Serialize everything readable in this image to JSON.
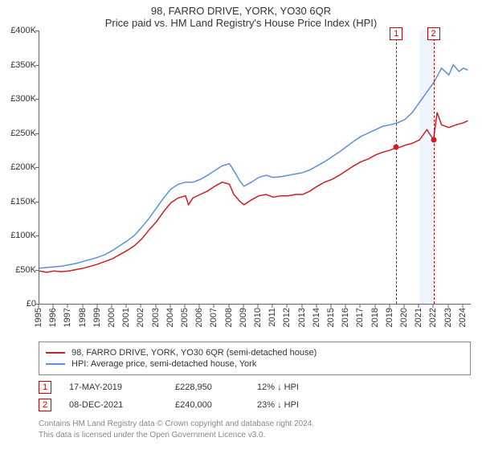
{
  "title": "98, FARRO DRIVE, YORK, YO30 6QR",
  "subtitle": "Price paid vs. HM Land Registry's House Price Index (HPI)",
  "chart": {
    "type": "line",
    "background_color": "#ffffff",
    "axis_color": "#666666",
    "label_color": "#333333",
    "label_fontsize": 11,
    "title_fontsize": 13,
    "x": {
      "min": 1995,
      "max": 2024.5,
      "ticks": [
        1995,
        1996,
        1997,
        1998,
        1999,
        2000,
        2001,
        2002,
        2003,
        2004,
        2005,
        2006,
        2007,
        2008,
        2009,
        2010,
        2011,
        2012,
        2013,
        2014,
        2015,
        2016,
        2017,
        2018,
        2019,
        2020,
        2021,
        2022,
        2023,
        2024
      ],
      "tick_rotation_deg": -90
    },
    "y": {
      "min": 0,
      "max": 400000,
      "ticks": [
        0,
        50000,
        100000,
        150000,
        200000,
        250000,
        300000,
        350000,
        400000
      ],
      "tick_labels": [
        "£0",
        "£50K",
        "£100K",
        "£150K",
        "£200K",
        "£250K",
        "£300K",
        "£350K",
        "£400K"
      ]
    },
    "markers": [
      {
        "tag": "1",
        "x": 2019.4,
        "shade_to": null
      },
      {
        "tag": "2",
        "x": 2021.95,
        "shade_to": 2021.0
      }
    ],
    "series": [
      {
        "key": "price_paid",
        "label": "98, FARRO DRIVE, YORK, YO30 6QR (semi-detached house)",
        "color": "#cc1f1f",
        "line_width": 1.5,
        "values": [
          [
            1995.0,
            48000
          ],
          [
            1995.5,
            46000
          ],
          [
            1996.0,
            48000
          ],
          [
            1996.5,
            47000
          ],
          [
            1997.0,
            48000
          ],
          [
            1997.5,
            50000
          ],
          [
            1998.0,
            52000
          ],
          [
            1998.5,
            55000
          ],
          [
            1999.0,
            58000
          ],
          [
            1999.5,
            62000
          ],
          [
            2000.0,
            66000
          ],
          [
            2000.5,
            72000
          ],
          [
            2001.0,
            78000
          ],
          [
            2001.5,
            85000
          ],
          [
            2002.0,
            95000
          ],
          [
            2002.5,
            108000
          ],
          [
            2003.0,
            120000
          ],
          [
            2003.5,
            135000
          ],
          [
            2004.0,
            148000
          ],
          [
            2004.5,
            155000
          ],
          [
            2005.0,
            158000
          ],
          [
            2005.2,
            145000
          ],
          [
            2005.5,
            155000
          ],
          [
            2006.0,
            160000
          ],
          [
            2006.5,
            165000
          ],
          [
            2007.0,
            172000
          ],
          [
            2007.5,
            178000
          ],
          [
            2008.0,
            175000
          ],
          [
            2008.3,
            160000
          ],
          [
            2008.7,
            150000
          ],
          [
            2009.0,
            145000
          ],
          [
            2009.5,
            152000
          ],
          [
            2010.0,
            158000
          ],
          [
            2010.5,
            160000
          ],
          [
            2011.0,
            156000
          ],
          [
            2011.5,
            158000
          ],
          [
            2012.0,
            158000
          ],
          [
            2012.5,
            160000
          ],
          [
            2013.0,
            160000
          ],
          [
            2013.5,
            165000
          ],
          [
            2014.0,
            172000
          ],
          [
            2014.5,
            178000
          ],
          [
            2015.0,
            182000
          ],
          [
            2015.5,
            188000
          ],
          [
            2016.0,
            195000
          ],
          [
            2016.5,
            202000
          ],
          [
            2017.0,
            208000
          ],
          [
            2017.5,
            212000
          ],
          [
            2018.0,
            218000
          ],
          [
            2018.5,
            222000
          ],
          [
            2019.0,
            225000
          ],
          [
            2019.4,
            228950
          ],
          [
            2019.5,
            228000
          ],
          [
            2020.0,
            232000
          ],
          [
            2020.5,
            235000
          ],
          [
            2021.0,
            240000
          ],
          [
            2021.5,
            255000
          ],
          [
            2021.95,
            240000
          ],
          [
            2022.2,
            280000
          ],
          [
            2022.5,
            262000
          ],
          [
            2023.0,
            258000
          ],
          [
            2023.5,
            262000
          ],
          [
            2024.0,
            265000
          ],
          [
            2024.3,
            268000
          ]
        ]
      },
      {
        "key": "hpi",
        "label": "HPI: Average price, semi-detached house, York",
        "color": "#5b8fd6",
        "line_width": 1.5,
        "values": [
          [
            1995.0,
            52000
          ],
          [
            1995.5,
            53000
          ],
          [
            1996.0,
            54000
          ],
          [
            1996.5,
            55000
          ],
          [
            1997.0,
            57000
          ],
          [
            1997.5,
            59000
          ],
          [
            1998.0,
            62000
          ],
          [
            1998.5,
            65000
          ],
          [
            1999.0,
            68000
          ],
          [
            1999.5,
            72000
          ],
          [
            2000.0,
            78000
          ],
          [
            2000.5,
            85000
          ],
          [
            2001.0,
            92000
          ],
          [
            2001.5,
            100000
          ],
          [
            2002.0,
            112000
          ],
          [
            2002.5,
            125000
          ],
          [
            2003.0,
            140000
          ],
          [
            2003.5,
            155000
          ],
          [
            2004.0,
            168000
          ],
          [
            2004.5,
            175000
          ],
          [
            2005.0,
            178000
          ],
          [
            2005.5,
            178000
          ],
          [
            2006.0,
            182000
          ],
          [
            2006.5,
            188000
          ],
          [
            2007.0,
            195000
          ],
          [
            2007.5,
            202000
          ],
          [
            2008.0,
            205000
          ],
          [
            2008.3,
            195000
          ],
          [
            2008.7,
            180000
          ],
          [
            2009.0,
            172000
          ],
          [
            2009.5,
            178000
          ],
          [
            2010.0,
            185000
          ],
          [
            2010.5,
            188000
          ],
          [
            2011.0,
            185000
          ],
          [
            2011.5,
            186000
          ],
          [
            2012.0,
            188000
          ],
          [
            2012.5,
            190000
          ],
          [
            2013.0,
            192000
          ],
          [
            2013.5,
            196000
          ],
          [
            2014.0,
            202000
          ],
          [
            2014.5,
            208000
          ],
          [
            2015.0,
            215000
          ],
          [
            2015.5,
            222000
          ],
          [
            2016.0,
            230000
          ],
          [
            2016.5,
            238000
          ],
          [
            2017.0,
            245000
          ],
          [
            2017.5,
            250000
          ],
          [
            2018.0,
            255000
          ],
          [
            2018.5,
            260000
          ],
          [
            2019.0,
            262000
          ],
          [
            2019.5,
            265000
          ],
          [
            2020.0,
            270000
          ],
          [
            2020.5,
            280000
          ],
          [
            2021.0,
            295000
          ],
          [
            2021.5,
            310000
          ],
          [
            2022.0,
            325000
          ],
          [
            2022.5,
            345000
          ],
          [
            2023.0,
            335000
          ],
          [
            2023.3,
            350000
          ],
          [
            2023.7,
            340000
          ],
          [
            2024.0,
            345000
          ],
          [
            2024.3,
            342000
          ]
        ]
      }
    ],
    "sale_points": [
      {
        "x": 2019.4,
        "y": 228950,
        "color": "#cc1f1f"
      },
      {
        "x": 2021.95,
        "y": 240000,
        "color": "#cc1f1f"
      }
    ]
  },
  "legend": {
    "items": [
      {
        "color": "#cc1f1f",
        "label": "98, FARRO DRIVE, YORK, YO30 6QR (semi-detached house)"
      },
      {
        "color": "#5b8fd6",
        "label": "HPI: Average price, semi-detached house, York"
      }
    ]
  },
  "sales": [
    {
      "tag": "1",
      "date": "17-MAY-2019",
      "price": "£228,950",
      "delta": "12% ↓ HPI"
    },
    {
      "tag": "2",
      "date": "08-DEC-2021",
      "price": "£240,000",
      "delta": "23% ↓ HPI"
    }
  ],
  "footnote": {
    "line1": "Contains HM Land Registry data © Crown copyright and database right 2024.",
    "line2": "This data is licensed under the Open Government Licence v3.0."
  }
}
